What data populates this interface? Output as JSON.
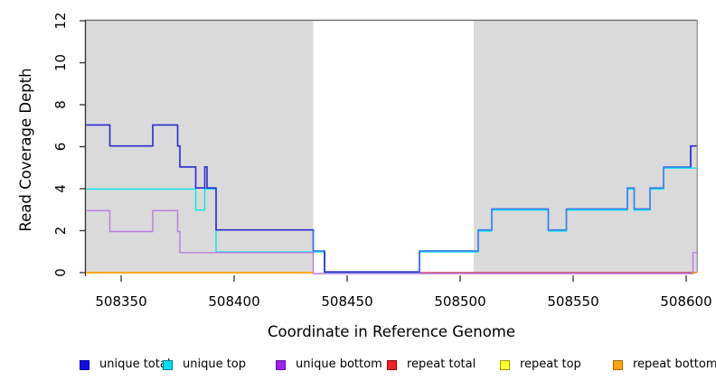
{
  "chart_data": {
    "type": "line",
    "subtype": "step-coverage",
    "title": "",
    "xlabel": "Coordinate in Reference Genome",
    "ylabel": "Read Coverage Depth",
    "xlim": [
      508334,
      508606
    ],
    "ylim": [
      0,
      12
    ],
    "x_ticks": [
      508350,
      508400,
      508450,
      508500,
      508550,
      508600
    ],
    "y_ticks": [
      0,
      2,
      4,
      6,
      8,
      10,
      12
    ],
    "grid": false,
    "legend_position": "bottom",
    "background_shading": {
      "color": "#DADADA",
      "meaning": "repeat regions of reference genome",
      "ranges": [
        [
          508334,
          508435
        ],
        [
          508506,
          508606
        ]
      ]
    },
    "series": [
      {
        "name": "unique total",
        "legend_fill": "#0F0FE8",
        "legend_border": "#0000A0",
        "color": "#2A2ACF",
        "color_spans": [
          {
            "from": 508334,
            "to": 508435,
            "color": "#2A2ACF"
          },
          {
            "from": 508435,
            "to": 508440,
            "color": "#3D7CE8"
          },
          {
            "from": 508440,
            "to": 508482,
            "color": "#2C2CC4"
          },
          {
            "from": 508482,
            "to": 508602,
            "color": "#3D7CE8"
          },
          {
            "from": 508602,
            "to": 508606,
            "color": "#2A2ACF"
          }
        ],
        "steps": [
          [
            508334,
            7
          ],
          [
            508345,
            6
          ],
          [
            508364,
            7
          ],
          [
            508375,
            6
          ],
          [
            508376,
            5
          ],
          [
            508383,
            4
          ],
          [
            508387,
            5
          ],
          [
            508388,
            4
          ],
          [
            508392,
            2
          ],
          [
            508435,
            1
          ],
          [
            508440,
            0
          ],
          [
            508482,
            1
          ],
          [
            508508,
            2
          ],
          [
            508514,
            3
          ],
          [
            508539,
            2
          ],
          [
            508547,
            3
          ],
          [
            508574,
            4
          ],
          [
            508577,
            3
          ],
          [
            508584,
            4
          ],
          [
            508590,
            5
          ],
          [
            508602,
            6
          ],
          [
            508605,
            6
          ]
        ]
      },
      {
        "name": "unique top",
        "legend_fill": "#00E0F0",
        "legend_border": "#007F8C",
        "color": "#00E5EE",
        "steps": [
          [
            508334,
            4
          ],
          [
            508383,
            3
          ],
          [
            508387,
            4
          ],
          [
            508392,
            1
          ],
          [
            508440,
            0
          ],
          [
            508482,
            1
          ],
          [
            508508,
            2
          ],
          [
            508514,
            3
          ],
          [
            508539,
            2
          ],
          [
            508547,
            3
          ],
          [
            508574,
            4
          ],
          [
            508577,
            3
          ],
          [
            508584,
            4
          ],
          [
            508590,
            5
          ],
          [
            508605,
            5
          ]
        ]
      },
      {
        "name": "unique bottom",
        "legend_fill": "#A020F0",
        "legend_border": "#6A0DAD",
        "color": "#B87BE0",
        "steps": [
          [
            508334,
            3
          ],
          [
            508345,
            2
          ],
          [
            508364,
            3
          ],
          [
            508375,
            2
          ],
          [
            508376,
            1
          ],
          [
            508435,
            0
          ],
          [
            508603,
            1
          ],
          [
            508605,
            1
          ]
        ]
      },
      {
        "name": "repeat total",
        "legend_fill": "#EE2222",
        "legend_border": "#990000",
        "color": "#D23C55",
        "steps": [
          [
            508482,
            0
          ],
          [
            508605,
            0
          ]
        ]
      },
      {
        "name": "repeat top",
        "legend_fill": "#FFFF2E",
        "legend_border": "#9C9C00",
        "color": "#FFEE00",
        "steps": [
          [
            508334,
            0
          ],
          [
            508435,
            0
          ]
        ]
      },
      {
        "name": "repeat bottom",
        "legend_fill": "#FFA510",
        "legend_border": "#A66A00",
        "color": "#FF9E00",
        "segments": [
          [
            [
              508334,
              0
            ],
            [
              508435,
              0
            ]
          ],
          [
            [
              508603,
              0
            ],
            [
              508605,
              0
            ]
          ]
        ]
      }
    ]
  }
}
